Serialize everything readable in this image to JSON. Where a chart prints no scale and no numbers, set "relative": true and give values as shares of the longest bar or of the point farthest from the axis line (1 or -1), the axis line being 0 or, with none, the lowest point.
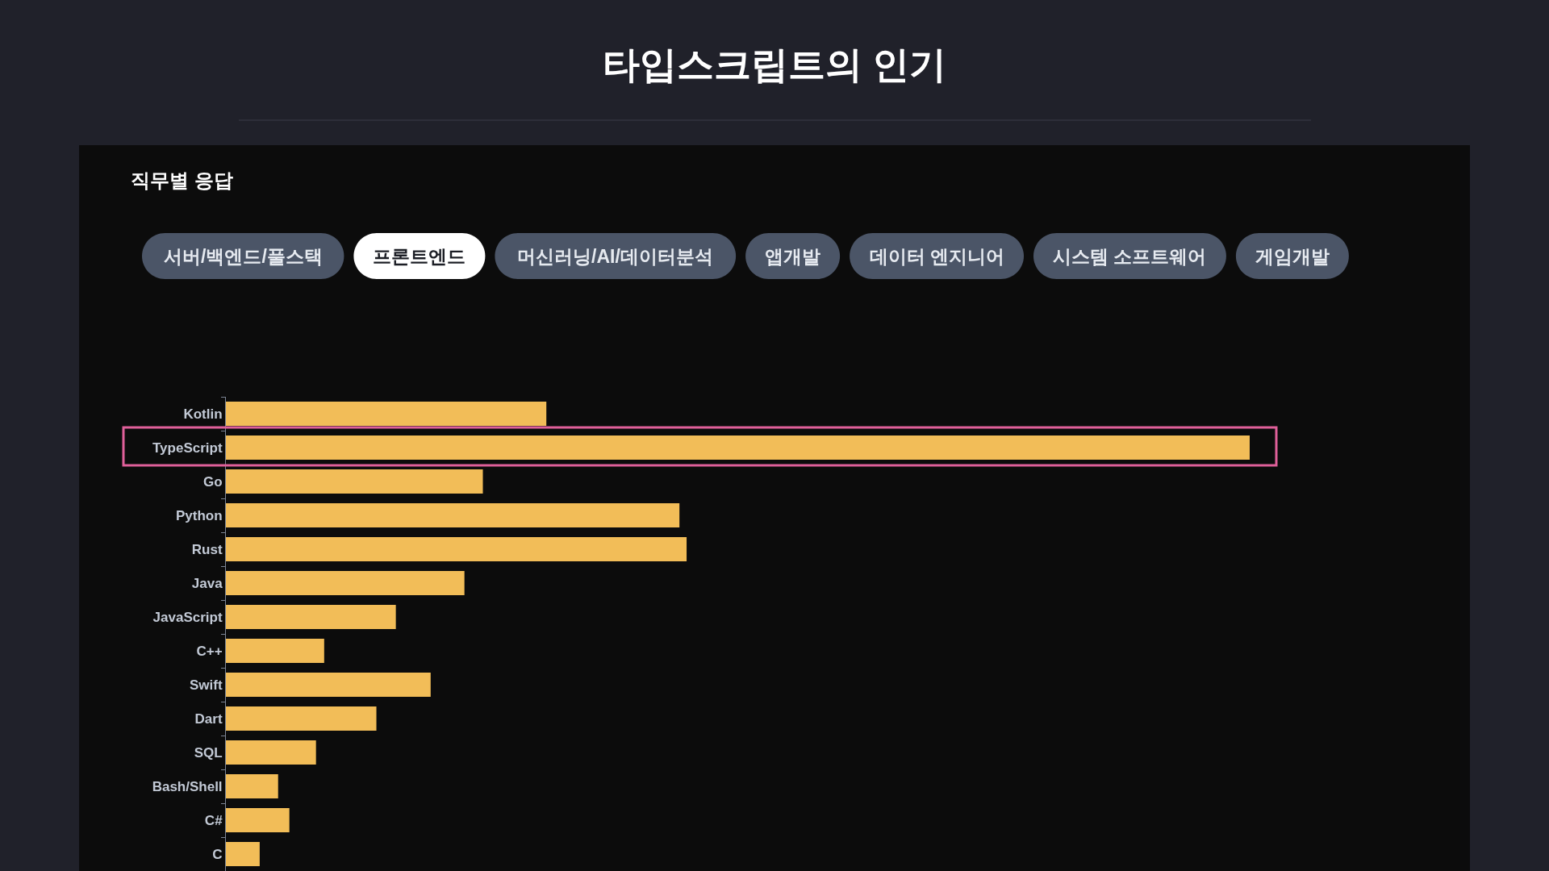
{
  "chart_data": {
    "type": "bar",
    "orientation": "horizontal",
    "relative": true,
    "title": "타입스크립트의 인기",
    "subtitle": "직무별 응답",
    "annotations": [
      "서버/백엔드/풀스택",
      "프론트엔드",
      "머신러닝/AI/데이터분석",
      "앱개발",
      "데이터 엔지니어",
      "시스템 소프트웨어",
      "게임개발"
    ],
    "categories": [
      "Kotlin",
      "TypeScript",
      "Go",
      "Python",
      "Rust",
      "Java",
      "JavaScript",
      "C++",
      "Swift",
      "Dart",
      "SQL",
      "Bash/Shell",
      "C#",
      "C"
    ],
    "values": [
      0.313,
      1,
      0.251,
      0.443,
      0.45,
      0.233,
      0.166,
      0.096,
      0.2,
      0.147,
      0.088,
      0.051,
      0.062,
      0.033
    ],
    "color": "#f2bd58"
  }
}
